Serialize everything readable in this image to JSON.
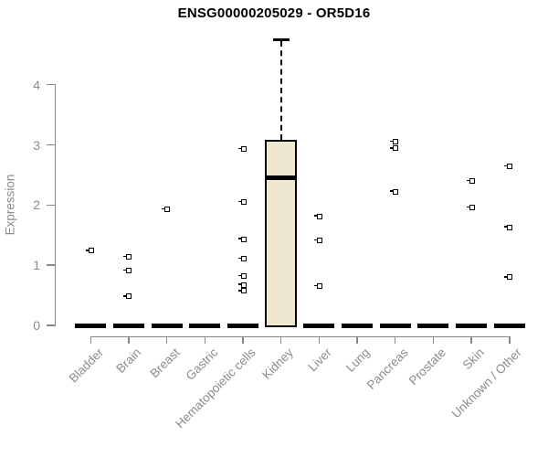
{
  "title": "ENSG00000205029 - OR5D16",
  "chart_data": {
    "type": "boxplot",
    "title": "ENSG00000205029 - OR5D16",
    "xlabel": "",
    "ylabel": "Expression",
    "ylim": [
      0,
      4
    ],
    "yticks": [
      0,
      1,
      2,
      3,
      4
    ],
    "grid": false,
    "legend": "none",
    "categories": [
      "Bladder",
      "Brain",
      "Breast",
      "Gastric",
      "Hematopoietic cells",
      "Kidney",
      "Liver",
      "Lung",
      "Pancreas",
      "Prostate",
      "Skin",
      "Unknown / Other"
    ],
    "boxes": [
      {
        "category": "Bladder",
        "q1": 0,
        "median": 0,
        "q3": 0,
        "whisker_low": 0,
        "whisker_high": 0,
        "outliers": [
          1.24
        ]
      },
      {
        "category": "Brain",
        "q1": 0,
        "median": 0,
        "q3": 0,
        "whisker_low": 0,
        "whisker_high": 0,
        "outliers": [
          1.14,
          0.91,
          0.48
        ]
      },
      {
        "category": "Breast",
        "q1": 0,
        "median": 0,
        "q3": 0,
        "whisker_low": 0,
        "whisker_high": 0,
        "outliers": [
          1.93
        ]
      },
      {
        "category": "Gastric",
        "q1": 0,
        "median": 0,
        "q3": 0,
        "whisker_low": 0,
        "whisker_high": 0,
        "outliers": []
      },
      {
        "category": "Hematopoietic cells",
        "q1": 0,
        "median": 0,
        "q3": 0,
        "whisker_low": 0,
        "whisker_high": 0,
        "outliers": [
          2.93,
          2.05,
          1.43,
          1.11,
          0.82,
          0.67,
          0.57
        ]
      },
      {
        "category": "Kidney",
        "q1": 0,
        "median": 2.45,
        "q3": 3.08,
        "whisker_low": 0,
        "whisker_high": 4.76,
        "outliers": []
      },
      {
        "category": "Liver",
        "q1": 0,
        "median": 0,
        "q3": 0,
        "whisker_low": 0,
        "whisker_high": 0,
        "outliers": [
          1.81,
          1.41,
          0.65
        ]
      },
      {
        "category": "Lung",
        "q1": 0,
        "median": 0,
        "q3": 0,
        "whisker_low": 0,
        "whisker_high": 0,
        "outliers": []
      },
      {
        "category": "Pancreas",
        "q1": 0,
        "median": 0,
        "q3": 0,
        "whisker_low": 0,
        "whisker_high": 0,
        "outliers": [
          3.05,
          2.94,
          2.22
        ]
      },
      {
        "category": "Prostate",
        "q1": 0,
        "median": 0,
        "q3": 0,
        "whisker_low": 0,
        "whisker_high": 0,
        "outliers": []
      },
      {
        "category": "Skin",
        "q1": 0,
        "median": 0,
        "q3": 0,
        "whisker_low": 0,
        "whisker_high": 0,
        "outliers": [
          2.4,
          1.96
        ]
      },
      {
        "category": "Unknown / Other",
        "q1": 0,
        "median": 0,
        "q3": 0,
        "whisker_low": 0,
        "whisker_high": 0,
        "outliers": [
          2.64,
          1.63,
          0.8
        ]
      }
    ],
    "colors": {
      "background": "#FFFFFF",
      "box_fill": "#EDE8CF",
      "box_border": "#000000",
      "median": "#000000",
      "whisker": "#000000",
      "outlier": "#000000",
      "axis": "#888888",
      "tick_label": "#8C8C8C",
      "title": "#000000"
    }
  }
}
